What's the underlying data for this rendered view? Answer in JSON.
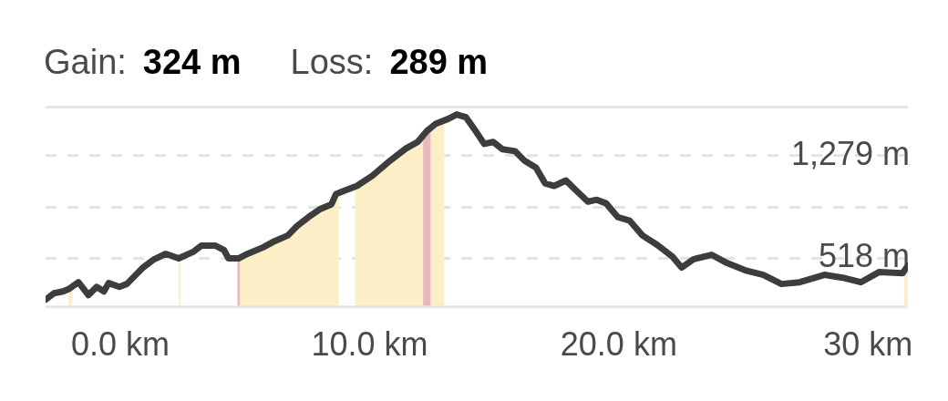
{
  "chart_data": {
    "type": "line",
    "annotations": [
      "Gain:",
      "324 m",
      "Loss:",
      "289 m"
    ],
    "x": [
      -3.0,
      -2.66,
      -2.3,
      -2.04,
      -1.68,
      -1.28,
      -0.95,
      -0.66,
      -0.47,
      -0.04,
      0.26,
      0.62,
      0.91,
      1.35,
      1.82,
      2.34,
      2.92,
      3.25,
      3.8,
      4.16,
      4.34,
      4.74,
      5.11,
      5.73,
      6.2,
      6.72,
      7.08,
      7.55,
      8.03,
      8.47,
      8.65,
      9.01,
      9.49,
      10.11,
      10.84,
      11.46,
      11.93,
      12.3,
      12.66,
      13.14,
      13.5,
      13.87,
      14.23,
      14.6,
      14.96,
      15.33,
      15.84,
      16.2,
      16.68,
      17.04,
      17.41,
      17.88,
      18.25,
      18.76,
      19.12,
      19.49,
      19.96,
      20.44,
      20.95,
      21.53,
      22.15,
      22.52,
      22.99,
      23.72,
      24.34,
      25.07,
      25.8,
      26.53,
      27.26,
      28.25,
      28.98,
      29.71,
      30.44,
      31.39,
      31.6
    ],
    "series": [
      {
        "color": "#3d3d3d",
        "values": [
          212,
          260,
          273,
          294,
          341,
          246,
          307,
          273,
          335,
          307,
          328,
          396,
          450,
          511,
          552,
          518,
          566,
          613,
          613,
          579,
          518,
          518,
          552,
          600,
          647,
          688,
          756,
          824,
          885,
          919,
          994,
          1021,
          1055,
          1130,
          1245,
          1333,
          1381,
          1462,
          1517,
          1551,
          1585,
          1564,
          1469,
          1367,
          1381,
          1327,
          1313,
          1245,
          1191,
          1075,
          1055,
          1096,
          1028,
          939,
          953,
          926,
          824,
          797,
          688,
          620,
          532,
          450,
          511,
          545,
          484,
          430,
          396,
          328,
          341,
          396,
          375,
          341,
          416,
          409,
          464
        ]
      }
    ],
    "bands": [
      {
        "axis": "x",
        "from": -2.08,
        "to": -1.93,
        "color": "#fcefc7"
      },
      {
        "axis": "x",
        "from": 2.34,
        "to": 2.41,
        "color": "#fcefc7"
      },
      {
        "axis": "x",
        "from": 4.82,
        "to": 8.76,
        "color": "#fcefc7"
      },
      {
        "axis": "x",
        "from": 9.42,
        "to": 12.99,
        "color": "#fcefc7"
      },
      {
        "axis": "x",
        "from": 31.45,
        "to": 31.6,
        "color": "#fcefc7"
      },
      {
        "axis": "x",
        "from": 4.7,
        "to": 4.8,
        "color": "#e9b7bd"
      },
      {
        "axis": "x",
        "from": 12.15,
        "to": 12.45,
        "color": "#e9b7bd"
      }
    ],
    "xlim": [
      -3,
      31.6
    ],
    "xticks": [
      {
        "value": 0,
        "label": "0.0 km"
      },
      {
        "value": 10,
        "label": "10.0 km"
      },
      {
        "value": 20,
        "label": "20.0 km"
      },
      {
        "value": 30,
        "label": "30 km"
      }
    ],
    "ylim": [
      158,
      1639
    ],
    "yticks": [
      {
        "value": 518,
        "label": "518 m"
      },
      {
        "value": 898.5,
        "label": null
      },
      {
        "value": 1279,
        "label": "1,279 m"
      }
    ],
    "grid": "y"
  }
}
